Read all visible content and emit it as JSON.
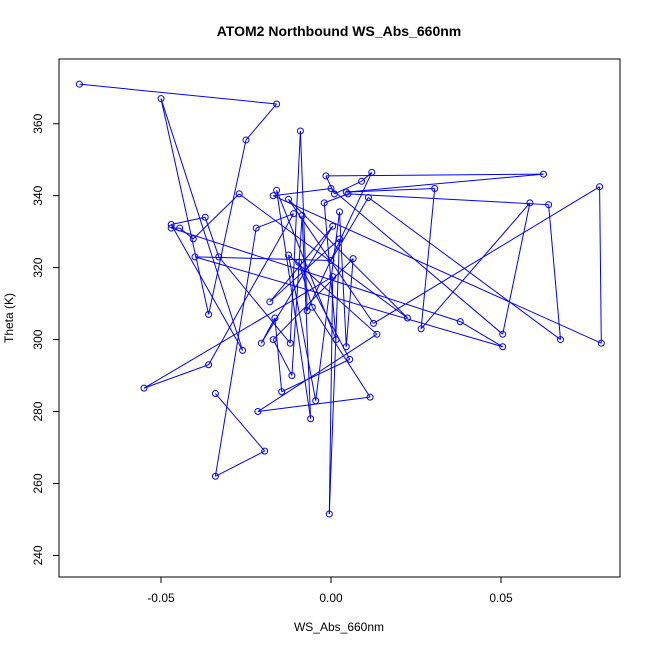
{
  "chart_data": {
    "type": "line",
    "title": "ATOM2 Northbound WS_Abs_660nm",
    "xlabel": "WS_Abs_660nm",
    "ylabel": "Theta (K)",
    "xlim": [
      -0.08,
      0.085
    ],
    "ylim": [
      234,
      378
    ],
    "xticks": [
      -0.05,
      0.0,
      0.05
    ],
    "xtick_labels": [
      "-0.05",
      "0.00",
      "0.05"
    ],
    "yticks": [
      240,
      260,
      280,
      300,
      320,
      340,
      360
    ],
    "ytick_labels": [
      "240",
      "260",
      "280",
      "300",
      "320",
      "340",
      "360"
    ],
    "grid": false,
    "colors": {
      "series": "#0000ff",
      "axes": "#000000",
      "background": "#ffffff"
    },
    "series": [
      {
        "marker": "open-circle",
        "style": "line+points",
        "points": [
          {
            "x": -0.074,
            "y": 371
          },
          {
            "x": -0.016,
            "y": 365.5
          },
          {
            "x": -0.025,
            "y": 355.5
          },
          {
            "x": -0.036,
            "y": 307
          },
          {
            "x": -0.05,
            "y": 367
          },
          {
            "x": -0.026,
            "y": 297
          },
          {
            "x": -0.047,
            "y": 332
          },
          {
            "x": -0.037,
            "y": 334
          },
          {
            "x": -0.033,
            "y": 323
          },
          {
            "x": -0.012,
            "y": 299
          },
          {
            "x": -0.009,
            "y": 358
          },
          {
            "x": -0.007,
            "y": 308
          },
          {
            "x": 0.012,
            "y": 346.5
          },
          {
            "x": 0.009,
            "y": 344
          },
          {
            "x": 0.001,
            "y": 340.5
          },
          {
            "x": -0.0015,
            "y": 345.5
          },
          {
            "x": 0.0625,
            "y": 346
          },
          {
            "x": 0.0045,
            "y": 341
          },
          {
            "x": 0.0305,
            "y": 342
          },
          {
            "x": 0.0265,
            "y": 303
          },
          {
            "x": 0.0585,
            "y": 338
          },
          {
            "x": 0.0505,
            "y": 301.5
          },
          {
            "x": 0.0,
            "y": 342
          },
          {
            "x": -0.017,
            "y": 340
          },
          {
            "x": 0.0795,
            "y": 299
          },
          {
            "x": 0.079,
            "y": 342.5
          },
          {
            "x": 0.0125,
            "y": 304.5
          },
          {
            "x": -0.0125,
            "y": 339
          },
          {
            "x": 0.0225,
            "y": 306
          },
          {
            "x": -0.027,
            "y": 340.5
          },
          {
            "x": -0.0405,
            "y": 328
          },
          {
            "x": -0.0445,
            "y": 331
          },
          {
            "x": -0.047,
            "y": 331
          },
          {
            "x": 0.038,
            "y": 305
          },
          {
            "x": 0.0505,
            "y": 298
          },
          {
            "x": -0.04,
            "y": 323
          },
          {
            "x": 0.0,
            "y": 322
          },
          {
            "x": 0.011,
            "y": 339.5
          },
          {
            "x": 0.0675,
            "y": 300
          },
          {
            "x": 0.064,
            "y": 337.5
          },
          {
            "x": 0.005,
            "y": 340.5
          },
          {
            "x": -0.002,
            "y": 338
          },
          {
            "x": 0.0015,
            "y": 300
          },
          {
            "x": -0.016,
            "y": 341.5
          },
          {
            "x": -0.006,
            "y": 278
          },
          {
            "x": -0.0085,
            "y": 334.5
          },
          {
            "x": -0.0115,
            "y": 290
          },
          {
            "x": -0.017,
            "y": 300
          },
          {
            "x": 0.0065,
            "y": 322.5
          },
          {
            "x": 0.0045,
            "y": 298
          },
          {
            "x": 0.0025,
            "y": 335.5
          },
          {
            "x": -0.0045,
            "y": 283
          },
          {
            "x": -0.0125,
            "y": 323.5
          },
          {
            "x": 0.0135,
            "y": 301.5
          },
          {
            "x": -0.0215,
            "y": 280
          },
          {
            "x": 0.0115,
            "y": 284
          },
          {
            "x": -0.0055,
            "y": 309
          },
          {
            "x": -0.0095,
            "y": 321.5
          },
          {
            "x": 0.0055,
            "y": 294.5
          },
          {
            "x": -0.0145,
            "y": 285.5
          },
          {
            "x": -0.0165,
            "y": 306
          },
          {
            "x": -0.0205,
            "y": 299
          },
          {
            "x": 0.0005,
            "y": 331.5
          },
          {
            "x": -0.018,
            "y": 310.5
          },
          {
            "x": 0.0025,
            "y": 328
          },
          {
            "x": -0.0005,
            "y": 251.5
          },
          {
            "x": 0.0005,
            "y": 317.5
          },
          {
            "x": -0.055,
            "y": 286.5
          },
          {
            "x": -0.036,
            "y": 293
          },
          {
            "x": -0.011,
            "y": 335
          },
          {
            "x": -0.022,
            "y": 331
          },
          {
            "x": -0.034,
            "y": 262
          },
          {
            "x": -0.0195,
            "y": 269
          },
          {
            "x": -0.034,
            "y": 285
          }
        ]
      }
    ]
  }
}
